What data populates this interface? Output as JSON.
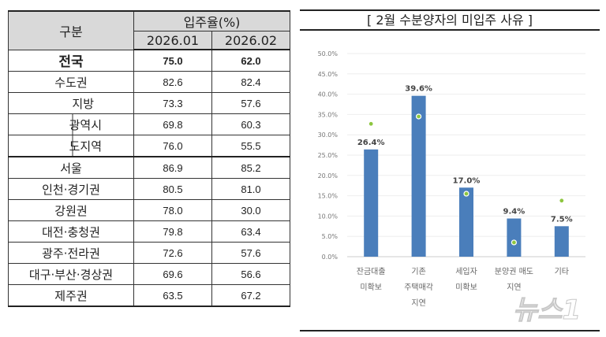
{
  "table": {
    "header": {
      "category": "구분",
      "rate": "입주율(%)",
      "periods": [
        "2026.01",
        "2026.02"
      ]
    },
    "rows": [
      {
        "label": "전국",
        "v1": "75.0",
        "v2": "62.0"
      },
      {
        "label": "수도권",
        "v1": "82.6",
        "v2": "82.4"
      },
      {
        "label": "지방",
        "v1": "73.3",
        "v2": "57.6"
      },
      {
        "label": "광역시",
        "v1": "69.8",
        "v2": "60.3"
      },
      {
        "label": "도지역",
        "v1": "76.0",
        "v2": "55.5"
      },
      {
        "label": "서울",
        "v1": "86.9",
        "v2": "85.2"
      },
      {
        "label": "인천·경기권",
        "v1": "80.5",
        "v2": "81.0"
      },
      {
        "label": "강원권",
        "v1": "78.0",
        "v2": "30.0"
      },
      {
        "label": "대전·충청권",
        "v1": "79.8",
        "v2": "63.4"
      },
      {
        "label": "광주·전라권",
        "v1": "72.6",
        "v2": "57.6"
      },
      {
        "label": "대구·부산·경상권",
        "v1": "69.6",
        "v2": "56.6"
      },
      {
        "label": "제주권",
        "v1": "63.5",
        "v2": "67.2"
      }
    ]
  },
  "chart_data": {
    "type": "bar",
    "title": "[ 2월 수분양자의 미입주 사유 ]",
    "categories": [
      [
        "잔금대출",
        "미확보"
      ],
      [
        "기존",
        "주택매각",
        "지연"
      ],
      [
        "세입자",
        "미확보"
      ],
      [
        "분양권 매도",
        "지연"
      ],
      [
        "기타"
      ]
    ],
    "series": [
      {
        "type": "bar",
        "values": [
          26.4,
          39.6,
          17.0,
          9.4,
          7.5
        ],
        "labels": [
          "26.4%",
          "39.6%",
          "17.0%",
          "9.4%",
          "7.5%"
        ],
        "color": "#4a7ebb"
      },
      {
        "type": "scatter",
        "values": [
          32.7,
          34.5,
          15.5,
          3.5,
          13.8
        ],
        "color": "#8dc63f"
      }
    ],
    "yticks": [
      "0.0%",
      "5.0%",
      "10.0%",
      "15.0%",
      "20.0%",
      "25.0%",
      "30.0%",
      "35.0%",
      "40.0%",
      "45.0%",
      "50.0%"
    ],
    "ylim": [
      0,
      50
    ],
    "grid": true,
    "watermark": "뉴스1"
  }
}
